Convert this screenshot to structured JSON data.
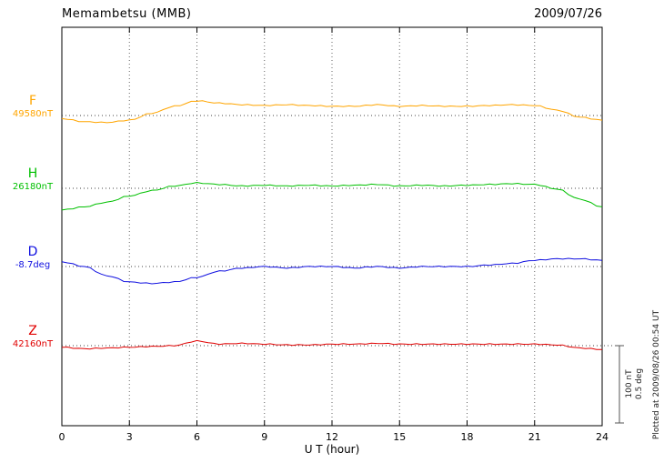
{
  "header": {
    "title": "Memambetsu (MMB)",
    "date": "2009/07/26"
  },
  "plotted_at": "Plotted at 2009/08/26 00:54 UT",
  "chart_data": {
    "type": "line",
    "title": "Memambetsu (MMB)",
    "date": "2009/07/26",
    "xlabel": "U T (hour)",
    "xlim": [
      0,
      24
    ],
    "x_step_hours": 1,
    "x_ticks": [
      0,
      3,
      6,
      9,
      12,
      15,
      18,
      21,
      24
    ],
    "grid": "dotted vertical lines every 3 hours; dotted horizontal baseline per channel",
    "scale_bar": {
      "labels": [
        "100 nT",
        "0.5 deg"
      ],
      "nt_per_bar": 100,
      "deg_per_bar": 0.5
    },
    "series": [
      {
        "name": "F",
        "baseline_label": "49580nT",
        "baseline_value": 49580,
        "unit": "nT",
        "color": "#FFA500",
        "row_frac": 0.2215,
        "offsets": [
          -4,
          -8,
          -9,
          -6,
          3,
          12,
          19,
          16,
          14,
          13,
          14,
          13,
          12,
          12,
          14,
          12,
          13,
          12,
          12,
          13,
          14,
          13,
          7,
          -2,
          -6
        ]
      },
      {
        "name": "H",
        "baseline_label": "26180nT",
        "baseline_value": 26180,
        "unit": "nT",
        "color": "#00C000",
        "row_frac": 0.4041,
        "offsets": [
          -28,
          -24,
          -18,
          -10,
          -3,
          3,
          7,
          5,
          3,
          4,
          3,
          4,
          3,
          4,
          5,
          3,
          4,
          3,
          4,
          5,
          6,
          5,
          -1,
          -14,
          -24
        ]
      },
      {
        "name": "D",
        "baseline_label": "-8.7deg",
        "baseline_value": -8.7,
        "unit": "deg",
        "color": "#1010E0",
        "row_frac": 0.6004,
        "offsets": [
          0.03,
          0,
          -0.06,
          -0.1,
          -0.11,
          -0.1,
          -0.07,
          -0.03,
          -0.01,
          0,
          -0.01,
          0,
          0,
          -0.01,
          0,
          -0.01,
          0,
          0,
          0,
          0.01,
          0.02,
          0.04,
          0.05,
          0.05,
          0.04
        ]
      },
      {
        "name": "Z",
        "baseline_label": "42160nT",
        "baseline_value": 42160,
        "unit": "nT",
        "color": "#E00000",
        "row_frac": 0.7991,
        "offsets": [
          -2,
          -4,
          -3,
          -2,
          -1,
          0,
          6,
          2,
          3,
          2,
          1,
          1,
          2,
          2,
          3,
          2,
          2,
          2,
          2,
          2,
          2,
          2,
          1,
          -3,
          -5
        ]
      }
    ]
  }
}
